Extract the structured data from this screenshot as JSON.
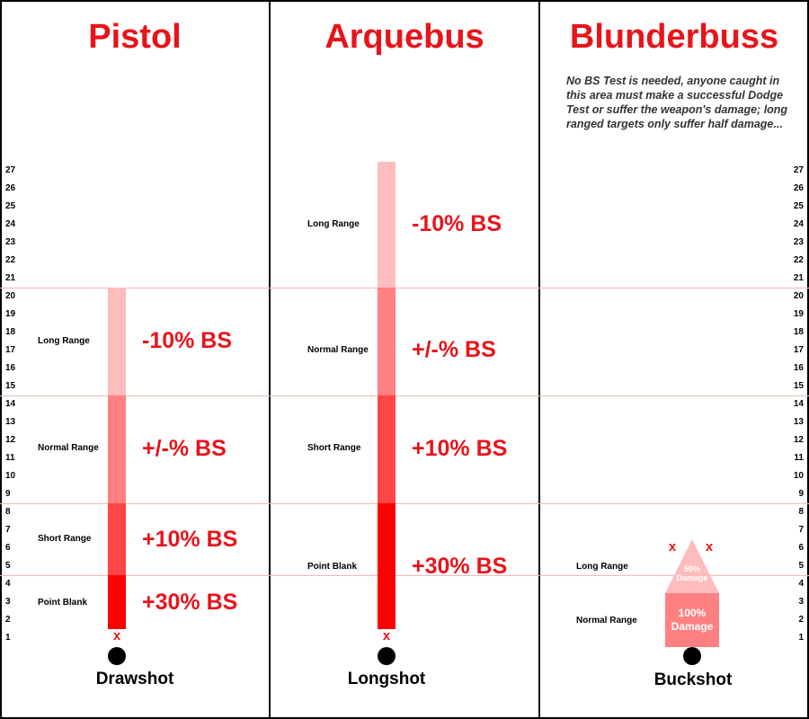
{
  "columns": [
    {
      "title": "Pistol",
      "shot": "Drawshot",
      "ranges": [
        {
          "label": "Long Range",
          "modifier": "-10% BS"
        },
        {
          "label": "Normal Range",
          "modifier": "+/-% BS"
        },
        {
          "label": "Short Range",
          "modifier": "+10% BS"
        },
        {
          "label": "Point Blank",
          "modifier": "+30% BS"
        }
      ],
      "marker": "x"
    },
    {
      "title": "Arquebus",
      "shot": "Longshot",
      "ranges": [
        {
          "label": "Long Range",
          "modifier": "-10% BS"
        },
        {
          "label": "Normal Range",
          "modifier": "+/-% BS"
        },
        {
          "label": "Short Range",
          "modifier": "+10% BS"
        },
        {
          "label": "Point Blank",
          "modifier": "+30% BS"
        }
      ],
      "marker": "x"
    },
    {
      "title": "Blunderbuss",
      "shot": "Buckshot",
      "note": "No BS Test is needed, anyone caught in this area must make a successful Dodge Test or suffer the weapon's damage; long ranged targets only suffer half damage...",
      "ranges": [
        {
          "label": "Long Range",
          "damage_pct": "50%",
          "damage_word": "Damage"
        },
        {
          "label": "Normal Range",
          "damage_pct": "100%",
          "damage_word": "Damage"
        }
      ],
      "markers": [
        "x",
        "x"
      ]
    }
  ],
  "scale": [
    "27",
    "26",
    "25",
    "24",
    "23",
    "22",
    "21",
    "20",
    "19",
    "18",
    "17",
    "16",
    "15",
    "14",
    "13",
    "12",
    "11",
    "10",
    "9",
    "8",
    "7",
    "6",
    "5",
    "4",
    "3",
    "2",
    "1"
  ],
  "colors": {
    "title_red": "#e8141b",
    "long": "#ffbcbc",
    "normal": "#ff8080",
    "short": "#ff4545",
    "point_blank": "#ff0000",
    "guide_line": "#f3b7b7"
  }
}
